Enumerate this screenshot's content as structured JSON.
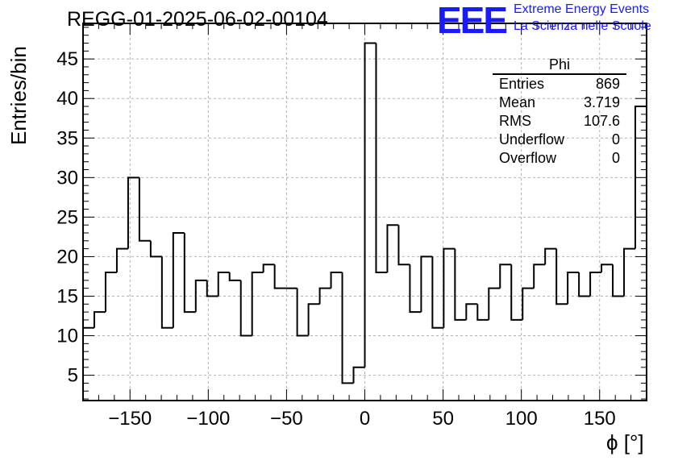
{
  "title": "REGG-01-2025-06-02-00104",
  "logo": {
    "mark": "EEE",
    "line1": "Extreme Energy Events",
    "line2": "La Scienza nelle Scuole"
  },
  "stats": {
    "name": "Phi",
    "rows": [
      {
        "label": "Entries",
        "value": "869"
      },
      {
        "label": "Mean",
        "value": "3.719"
      },
      {
        "label": "RMS",
        "value": "107.6"
      },
      {
        "label": "Underflow",
        "value": "0"
      },
      {
        "label": "Overflow",
        "value": "0"
      }
    ]
  },
  "chart_data": {
    "type": "histogram",
    "title": "REGG-01-2025-06-02-00104",
    "xlabel": "ϕ [°]",
    "ylabel": "Entries/bin",
    "xlim": [
      -180,
      180
    ],
    "ylim": [
      1.8,
      49.5
    ],
    "grid": true,
    "bin_width": 7.2,
    "xticks": [
      -150,
      -100,
      -50,
      0,
      50,
      100,
      150
    ],
    "xtick_labels": [
      "−150",
      "−100",
      "−50",
      "0",
      "50",
      "100",
      "150"
    ],
    "yticks": [
      5,
      10,
      15,
      20,
      25,
      30,
      35,
      40,
      45
    ],
    "values": [
      11,
      13,
      18,
      21,
      30,
      22,
      20,
      11,
      23,
      13,
      17,
      15,
      18,
      17,
      10,
      18,
      19,
      16,
      16,
      10,
      14,
      16,
      18,
      4,
      6,
      47,
      18,
      24,
      19,
      13,
      20,
      11,
      21,
      12,
      14,
      12,
      16,
      19,
      12,
      16,
      19,
      21,
      14,
      18,
      15,
      18,
      19,
      15,
      21,
      39
    ]
  }
}
